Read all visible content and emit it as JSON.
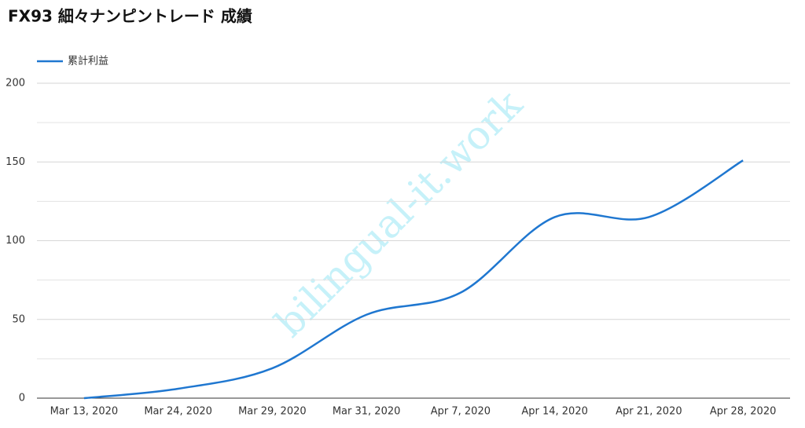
{
  "chart_data": {
    "type": "line",
    "title": "FX93 細々ナンピントレード 成績",
    "watermark": "bilingual-it.work",
    "categories": [
      "Mar 13, 2020",
      "Mar 24, 2020",
      "Mar 29, 2020",
      "Mar 31, 2020",
      "Apr 7, 2020",
      "Apr 14, 2020",
      "Apr 21, 2020",
      "Apr 28, 2020"
    ],
    "series": [
      {
        "name": "累計利益",
        "color": "#1f77d0",
        "values": [
          0,
          6,
          19,
          53,
          67,
          115,
          115,
          151
        ]
      }
    ],
    "ylim": [
      0,
      200
    ],
    "yticks": [
      0,
      50,
      100,
      150,
      200
    ],
    "minor_yticks": [
      25,
      75,
      125,
      175
    ],
    "grid": true,
    "legend": "top-left"
  }
}
